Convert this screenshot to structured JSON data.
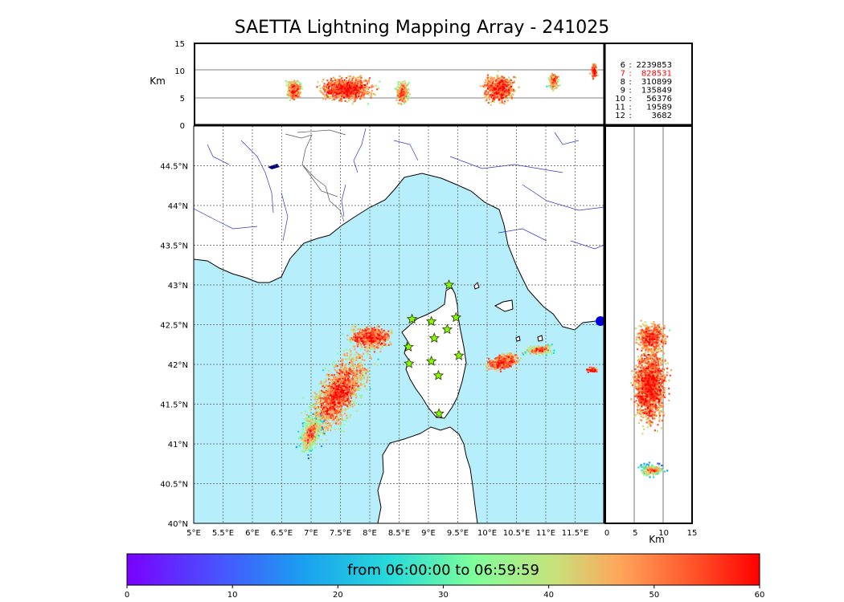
{
  "title": "SAETTA Lightning Mapping Array - 241025",
  "colors": {
    "sea": "#b7eefb",
    "land": "#ffffff",
    "coast": "#000000",
    "rivers": "#3333cc",
    "borders": "#555555",
    "grid": "#555555",
    "station_fill": "#7dff00",
    "station_edge": "#333300"
  },
  "alt_panel": {
    "ylabel": "Km",
    "yticks": [
      "0",
      "5",
      "10",
      "15"
    ],
    "ylim": [
      0,
      15
    ]
  },
  "side_panel": {
    "xlabel": "Km",
    "xticks": [
      "0",
      "5",
      "10",
      "15"
    ],
    "xlim": [
      0,
      15
    ]
  },
  "map": {
    "lon_range": [
      5,
      12
    ],
    "lat_range": [
      40,
      45
    ],
    "lon_ticks": [
      "5°E",
      "5.5°E",
      "6°E",
      "6.5°E",
      "7°E",
      "7.5°E",
      "8°E",
      "8.5°E",
      "9°E",
      "9.5°E",
      "10°E",
      "10.5°E",
      "11°E",
      "11.5°E"
    ],
    "lat_ticks": [
      "40°N",
      "40.5°N",
      "41°N",
      "41.5°N",
      "42°N",
      "42.5°N",
      "43°N",
      "43.5°N",
      "44°N",
      "44.5°N"
    ]
  },
  "stations": [
    {
      "lon": 9.35,
      "lat": 43.0
    },
    {
      "lon": 8.72,
      "lat": 42.57
    },
    {
      "lon": 9.05,
      "lat": 42.54
    },
    {
      "lon": 9.47,
      "lat": 42.59
    },
    {
      "lon": 9.32,
      "lat": 42.44
    },
    {
      "lon": 9.1,
      "lat": 42.33
    },
    {
      "lon": 8.66,
      "lat": 42.22
    },
    {
      "lon": 9.52,
      "lat": 42.11
    },
    {
      "lon": 8.67,
      "lat": 42.01
    },
    {
      "lon": 9.05,
      "lat": 42.04
    },
    {
      "lon": 9.17,
      "lat": 41.86
    },
    {
      "lon": 9.18,
      "lat": 41.38
    }
  ],
  "counts_legend": [
    {
      "level": "6",
      "count": "2239853",
      "color": "#000000"
    },
    {
      "level": "7",
      "count": "828531",
      "color": "#ff0000"
    },
    {
      "level": "8",
      "count": "310899",
      "color": "#000000"
    },
    {
      "level": "9",
      "count": "135849",
      "color": "#000000"
    },
    {
      "level": "10",
      "count": "56376",
      "color": "#000000"
    },
    {
      "level": "11",
      "count": "19589",
      "color": "#000000"
    },
    {
      "level": "12",
      "count": "3682",
      "color": "#000000"
    }
  ],
  "colorbar": {
    "label": "from 06:00:00 to 06:59:59",
    "ticks": [
      "0",
      "10",
      "20",
      "30",
      "40",
      "50",
      "60"
    ],
    "range": [
      0,
      60
    ]
  }
}
